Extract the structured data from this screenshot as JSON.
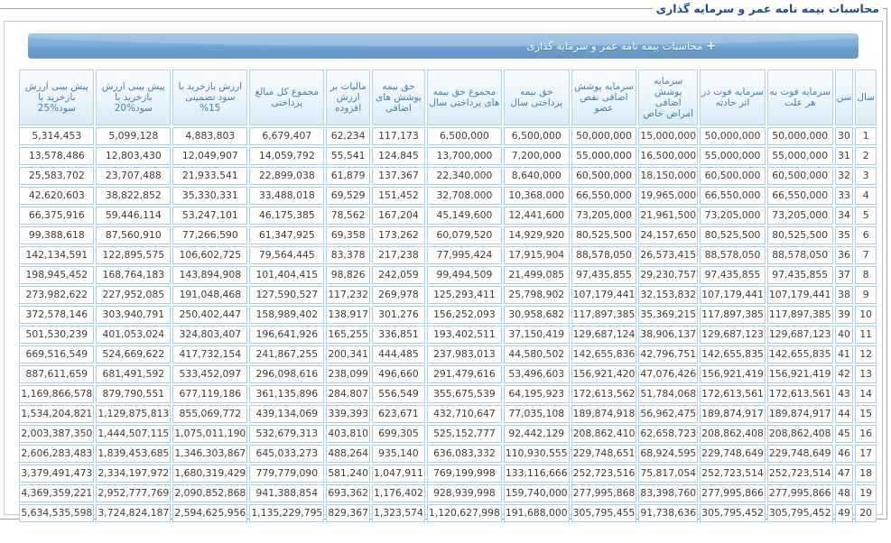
{
  "fieldset": {
    "legend": "محاسبات بیمه نامه عمر و سرمایه گذاری"
  },
  "panel": {
    "header": {
      "toggle_icon": "+",
      "title": "محاسبات بیمه نامه عمر و سرمایه گذاری"
    }
  },
  "colors": {
    "legend_text": "#1a4e8e",
    "bar_gradient_top": "#8fb9de",
    "bar_gradient_bottom": "#6396c5",
    "bar_text": "#ffffff",
    "header_cell_bg": "#e4f1fa",
    "header_cell_text": "#4a7cae",
    "cell_border": "#a9cde7",
    "cell_text": "#3b3b3b"
  },
  "table": {
    "columns": [
      {
        "key": "year",
        "label": "سال"
      },
      {
        "key": "age",
        "label": "سن"
      },
      {
        "key": "capital_death_any_cause",
        "label": "سرمایه فوت به هر علت"
      },
      {
        "key": "capital_death_accident",
        "label": "سرمایه فوت در اثر حادثه"
      },
      {
        "key": "capital_special_diseases",
        "label": "سرمایه پوشش اضافی امراض خاص"
      },
      {
        "key": "capital_disability",
        "label": "سرمایه پوشش اضافی نقص عضو"
      },
      {
        "key": "premium_paid_year",
        "label": "حق بیمه پرداختی سال"
      },
      {
        "key": "total_premiums_paid_year",
        "label": "مجموع حق بیمه های پرداختی سال"
      },
      {
        "key": "additional_coverages_premium",
        "label": "حق بیمه پوشش های اضافی"
      },
      {
        "key": "vat",
        "label": "مالیات بر ارزش افزوده"
      },
      {
        "key": "total_amounts_paid",
        "label": "مجموع کل مبالغ پرداختی"
      },
      {
        "key": "surrender_value_guaranteed_15",
        "label": "ارزش بازخرید با سود تضمینی 15%"
      },
      {
        "key": "predicted_surrender_20",
        "label": "پیش بینی ارزش بازخرید با سود%20"
      },
      {
        "key": "predicted_surrender_25",
        "label": "پیش بینی ارزش بازخرید با سود%25"
      }
    ],
    "rows": [
      [
        "1",
        "30",
        "50,000,000",
        "50,000,000",
        "15,000,000",
        "50,000,000",
        "6,500,000",
        "6,500,000",
        "117,173",
        "62,234",
        "6,679,407",
        "4,883,803",
        "5,099,128",
        "5,314,453"
      ],
      [
        "2",
        "31",
        "55,000,000",
        "55,000,000",
        "16,500,000",
        "55,000,000",
        "7,200,000",
        "13,700,000",
        "124,845",
        "55,541",
        "14,059,792",
        "12,049,907",
        "12,803,430",
        "13,578,486"
      ],
      [
        "3",
        "32",
        "60,500,000",
        "60,500,000",
        "18,150,000",
        "60,500,000",
        "8,640,000",
        "22,340,000",
        "137,367",
        "61,879",
        "22,899,038",
        "21,933,541",
        "23,707,488",
        "25,583,702"
      ],
      [
        "4",
        "33",
        "66,550,000",
        "66,550,000",
        "19,965,000",
        "66,550,000",
        "10,368,000",
        "32,708,000",
        "151,452",
        "69,529",
        "33,488,018",
        "35,330,331",
        "38,822,852",
        "42,620,603"
      ],
      [
        "5",
        "34",
        "73,205,000",
        "73,205,000",
        "21,961,500",
        "73,205,000",
        "12,441,600",
        "45,149,600",
        "167,204",
        "78,562",
        "46,175,385",
        "53,247,101",
        "59,446,114",
        "66,375,916"
      ],
      [
        "6",
        "35",
        "80,525,500",
        "80,525,500",
        "24,157,650",
        "80,525,500",
        "14,929,920",
        "60,079,520",
        "173,262",
        "69,358",
        "61,347,925",
        "77,266,590",
        "87,560,910",
        "99,388,618"
      ],
      [
        "7",
        "36",
        "88,578,050",
        "88,578,050",
        "26,573,415",
        "88,578,050",
        "17,915,904",
        "77,995,424",
        "217,238",
        "83,378",
        "79,564,445",
        "106,602,725",
        "122,895,575",
        "142,134,591"
      ],
      [
        "8",
        "37",
        "97,435,855",
        "97,435,855",
        "29,230,757",
        "97,435,855",
        "21,499,085",
        "99,494,509",
        "242,059",
        "98,826",
        "101,404,415",
        "143,894,908",
        "168,764,183",
        "198,945,452"
      ],
      [
        "9",
        "38",
        "107,179,441",
        "107,179,441",
        "32,153,832",
        "107,179,441",
        "25,798,902",
        "125,293,411",
        "269,978",
        "117,232",
        "127,590,527",
        "191,048,468",
        "227,952,085",
        "273,982,622"
      ],
      [
        "10",
        "39",
        "117,897,385",
        "117,897,385",
        "35,369,215",
        "117,897,385",
        "30,958,682",
        "156,252,093",
        "301,276",
        "138,917",
        "158,989,402",
        "250,402,447",
        "303,940,791",
        "372,578,146"
      ],
      [
        "11",
        "40",
        "129,687,123",
        "129,687,123",
        "38,906,137",
        "129,687,124",
        "37,150,419",
        "193,402,511",
        "336,851",
        "165,255",
        "196,641,926",
        "324,803,407",
        "401,053,024",
        "501,530,239"
      ],
      [
        "12",
        "41",
        "142,655,835",
        "142,655,835",
        "42,796,751",
        "142,655,836",
        "44,580,502",
        "237,983,013",
        "444,485",
        "200,341",
        "241,867,255",
        "417,732,154",
        "524,669,622",
        "669,516,549"
      ],
      [
        "13",
        "42",
        "156,921,419",
        "156,921,419",
        "47,076,426",
        "156,921,420",
        "53,496,603",
        "291,479,616",
        "496,660",
        "238,099",
        "296,098,616",
        "533,452,097",
        "681,491,592",
        "887,611,659"
      ],
      [
        "14",
        "43",
        "172,613,561",
        "172,613,561",
        "51,784,068",
        "172,613,562",
        "64,195,923",
        "355,675,539",
        "556,549",
        "284,807",
        "361,135,896",
        "677,119,186",
        "879,790,551",
        "1,169,866,578"
      ],
      [
        "15",
        "44",
        "189,874,917",
        "189,874,917",
        "56,962,475",
        "189,874,918",
        "77,035,108",
        "432,710,647",
        "623,671",
        "339,393",
        "439,134,069",
        "855,069,772",
        "1,129,875,813",
        "1,534,204,821"
      ],
      [
        "16",
        "45",
        "208,862,408",
        "208,862,408",
        "62,658,723",
        "208,862,410",
        "92,442,129",
        "525,152,777",
        "699,305",
        "403,810",
        "532,679,313",
        "1,075,011,190",
        "1,444,507,115",
        "2,003,387,350"
      ],
      [
        "17",
        "46",
        "229,748,649",
        "229,748,649",
        "68,924,595",
        "229,748,651",
        "110,930,555",
        "636,083,332",
        "935,140",
        "488,264",
        "645,033,273",
        "1,346,303,867",
        "1,839,453,685",
        "2,606,283,483"
      ],
      [
        "18",
        "47",
        "252,723,514",
        "252,723,514",
        "75,817,054",
        "252,723,516",
        "133,116,666",
        "769,199,998",
        "1,047,911",
        "581,240",
        "779,779,090",
        "1,680,319,429",
        "2,334,197,972",
        "3,379,491,473"
      ],
      [
        "19",
        "48",
        "277,995,866",
        "277,995,866",
        "83,398,760",
        "277,995,868",
        "159,740,000",
        "928,939,998",
        "1,176,402",
        "693,362",
        "941,388,854",
        "2,090,852,868",
        "2,952,777,769",
        "4,369,359,221"
      ],
      [
        "20",
        "49",
        "305,795,452",
        "305,795,452",
        "91,738,636",
        "305,795,455",
        "191,688,000",
        "1,120,627,998",
        "1,323,574",
        "829,367",
        "1,135,229,795",
        "2,594,625,956",
        "3,724,824,187",
        "5,634,535,598"
      ]
    ]
  }
}
